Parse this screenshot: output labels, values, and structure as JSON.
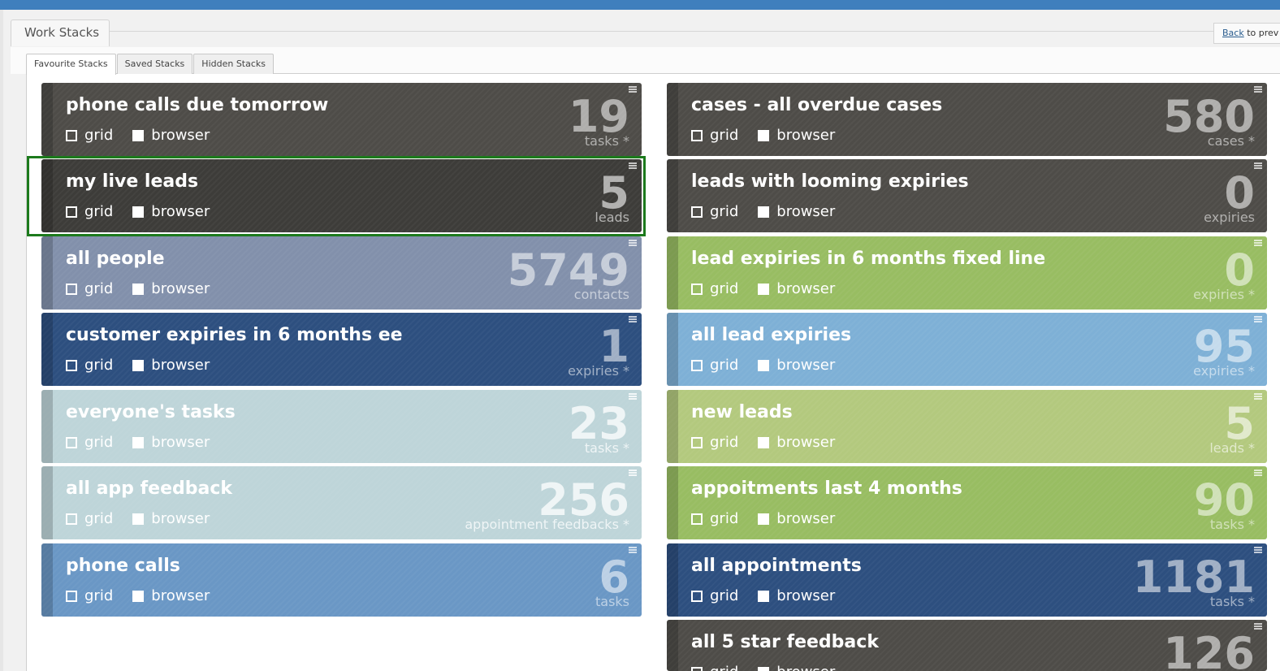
{
  "header": {
    "title": "Work Stacks",
    "back_link": "Back",
    "back_suffix": "to prev"
  },
  "tabs": [
    {
      "label": "Favourite Stacks",
      "active": true
    },
    {
      "label": "Saved Stacks",
      "active": false
    },
    {
      "label": "Hidden Stacks",
      "active": false
    }
  ],
  "option_labels": {
    "grid": "grid",
    "browser": "browser"
  },
  "tiles_left": [
    {
      "title": "phone calls due tomorrow",
      "count": "19",
      "unit": "tasks *",
      "color": "#4e4c48"
    },
    {
      "title": "my live leads",
      "count": "5",
      "unit": "leads",
      "color": "#3d3c39",
      "selected": true
    },
    {
      "title": "all people",
      "count": "5749",
      "unit": "contacts",
      "color": "#8290ab"
    },
    {
      "title": "customer expiries in 6 months ee",
      "count": "1",
      "unit": "expiries *",
      "color": "#2d4f7f"
    },
    {
      "title": "everyone's tasks",
      "count": "23",
      "unit": "tasks *",
      "color": "#bed5d9"
    },
    {
      "title": "all app feedback",
      "count": "256",
      "unit": "appointment feedbacks *",
      "color": "#bed5d9"
    },
    {
      "title": "phone calls",
      "count": "6",
      "unit": "tasks",
      "color": "#6a97c5"
    }
  ],
  "tiles_right": [
    {
      "title": "cases - all overdue cases",
      "count": "580",
      "unit": "cases *",
      "color": "#4e4c48"
    },
    {
      "title": "leads with looming expiries",
      "count": "0",
      "unit": "expiries",
      "color": "#4e4c48"
    },
    {
      "title": "lead expiries in 6 months fixed line",
      "count": "0",
      "unit": "expiries *",
      "color": "#98bd62"
    },
    {
      "title": "all lead expiries",
      "count": "95",
      "unit": "expiries *",
      "color": "#7eb0d6"
    },
    {
      "title": "new leads",
      "count": "5",
      "unit": "leads *",
      "color": "#b3c97e"
    },
    {
      "title": "appoitments last 4 months",
      "count": "90",
      "unit": "tasks *",
      "color": "#98bd62"
    },
    {
      "title": "all appointments",
      "count": "1181",
      "unit": "tasks *",
      "color": "#2d4f7f"
    },
    {
      "title": "all 5 star feedback",
      "count": "126",
      "unit": "",
      "color": "#4e4c48"
    }
  ]
}
